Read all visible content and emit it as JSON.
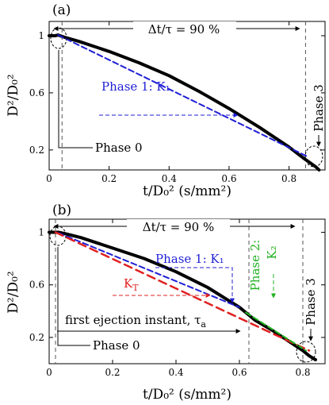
{
  "chart_data": [
    {
      "type": "line",
      "panel_label": "(a)",
      "xlabel": "t/D₀² (s/mm²)",
      "ylabel": "D²/D₀²",
      "xlim": [
        0,
        0.92
      ],
      "ylim": [
        0.06,
        1.1
      ],
      "xticks": [
        0,
        0.2,
        0.4,
        0.6,
        0.8
      ],
      "xtick_labels": [
        "0",
        "0.2",
        "0.4",
        "0.6",
        "0.8"
      ],
      "yticks": [
        0.2,
        0.6,
        1
      ],
      "ytick_labels": [
        "0.2",
        "0.6",
        "1"
      ],
      "series": [
        {
          "kind": "measured",
          "color": "#000000",
          "width": 4,
          "x": [
            0,
            0.02,
            0.03,
            0.05,
            0.1,
            0.2,
            0.3,
            0.4,
            0.5,
            0.6,
            0.7,
            0.8,
            0.85,
            0.87,
            0.89,
            0.9
          ],
          "y": [
            1.0,
            1.0,
            1.005,
            0.99,
            0.96,
            0.89,
            0.81,
            0.72,
            0.61,
            0.49,
            0.36,
            0.22,
            0.14,
            0.11,
            0.08,
            0.06
          ]
        },
        {
          "kind": "fit",
          "color": "#1f1fd6",
          "width": 2,
          "dash": "7 4",
          "x": [
            0.03,
            0.86
          ],
          "y": [
            1.005,
            0.155
          ]
        }
      ],
      "annotations": {
        "duration": "Δt/τ = 90 %",
        "phase1": "Phase 1: K₁",
        "phase0": "Phase 0",
        "phase3": "Phase 3"
      },
      "vlines": [
        0.043,
        0.855
      ]
    },
    {
      "type": "line",
      "panel_label": "(b)",
      "xlabel": "t/D₀² (s/mm²)",
      "ylabel": "D²/D₀²",
      "xlim": [
        0,
        0.87
      ],
      "ylim": [
        0,
        1.1
      ],
      "xticks": [
        0,
        0.2,
        0.4,
        0.6,
        0.8
      ],
      "xtick_labels": [
        "0",
        "0.2",
        "0.4",
        "0.6",
        "0.8"
      ],
      "yticks": [
        0.2,
        0.6,
        1
      ],
      "ytick_labels": [
        "0.2",
        "0.6",
        "1"
      ],
      "series": [
        {
          "kind": "measured",
          "color": "#000000",
          "width": 4,
          "x": [
            0,
            0.02,
            0.03,
            0.05,
            0.1,
            0.2,
            0.3,
            0.4,
            0.5,
            0.58,
            0.6,
            0.62,
            0.65,
            0.7,
            0.75,
            0.8,
            0.82,
            0.84
          ],
          "y": [
            1.0,
            1.0,
            1.0,
            0.99,
            0.96,
            0.88,
            0.8,
            0.7,
            0.58,
            0.46,
            0.43,
            0.39,
            0.33,
            0.26,
            0.18,
            0.1,
            0.06,
            0.03
          ]
        },
        {
          "kind": "fit-K1",
          "color": "#1f1fd6",
          "width": 2,
          "dash": "7 4",
          "x": [
            0.03,
            0.6
          ],
          "y": [
            0.995,
            0.43
          ]
        },
        {
          "kind": "fit-KT",
          "color": "#e02020",
          "width": 2.5,
          "dash": "10 6",
          "x": [
            0.02,
            0.82
          ],
          "y": [
            1.0,
            0.1
          ]
        },
        {
          "kind": "fit-K2",
          "color": "#20b020",
          "width": 2,
          "dash": "7 4",
          "x": [
            0.62,
            0.81
          ],
          "y": [
            0.39,
            0.1
          ]
        }
      ],
      "annotations": {
        "duration": "Δt/τ = 90 %",
        "phase1": "Phase 1: K₁",
        "kt": "K",
        "kt_sub": "T",
        "phase2": "Phase 2:",
        "phase2_k": "K₂",
        "ejection": "first ejection instant, τ",
        "ejection_sub": "a",
        "phase0": "Phase 0",
        "phase3": "Phase 3"
      },
      "vlines": [
        0.02,
        0.63,
        0.8
      ]
    }
  ]
}
